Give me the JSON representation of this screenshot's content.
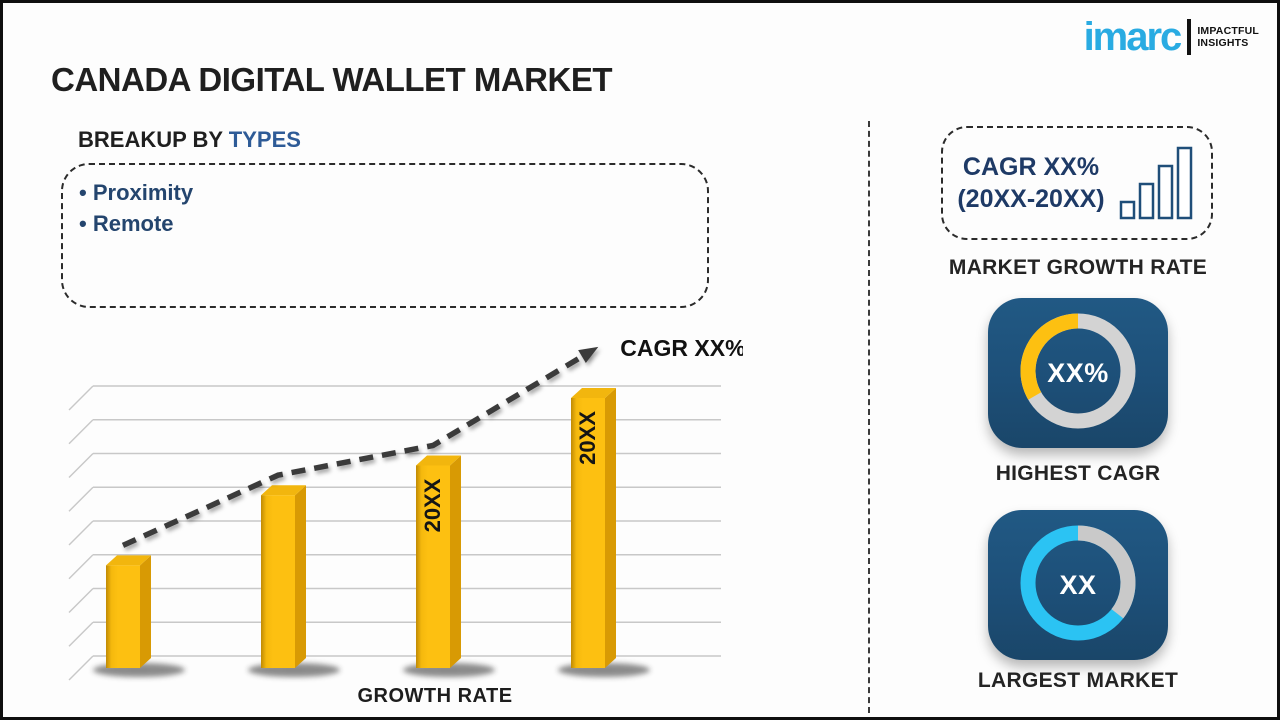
{
  "header": {
    "title": "CANADA DIGITAL WALLET MARKET",
    "logo": {
      "brand": "imarc",
      "tagline1": "IMPACTFUL",
      "tagline2": "INSIGHTS",
      "brand_color": "#29abe2"
    }
  },
  "breakup": {
    "heading_prefix": "BREAKUP BY ",
    "heading_highlight": "TYPES",
    "items": [
      "Proximity",
      "Remote"
    ]
  },
  "chart_data": {
    "type": "bar",
    "title": "",
    "xlabel": "GROWTH RATE",
    "categories": [
      "",
      "",
      "20XX",
      "20XX"
    ],
    "values_pct_of_max": [
      38,
      64,
      75,
      100
    ],
    "bar_labels": [
      "",
      "",
      "20XX",
      "20XX"
    ],
    "trend_line": {
      "label": "CAGR XX%",
      "style": "dashed-arrow-rising"
    },
    "bar_color": "#fdc011",
    "grid": true,
    "ylim": [
      0,
      100
    ],
    "legend": "none"
  },
  "right_panel": {
    "growth_box": {
      "line1": "CAGR XX%",
      "line2": "(20XX-20XX)"
    },
    "growth_caption": "MARKET GROWTH RATE",
    "tiles": [
      {
        "value": "XX%",
        "caption": "HIGHEST CAGR",
        "ring_base": "#d3d3d3",
        "ring_accent": "#fdc011",
        "accent_start_deg": 240,
        "accent_end_deg": 360
      },
      {
        "value": "XX",
        "caption": "LARGEST MARKET",
        "ring_base": "#2bc3f3",
        "ring_accent": "#c9c9c9",
        "accent_start_deg": 0,
        "accent_end_deg": 128
      }
    ]
  },
  "colors": {
    "title_text": "#1f1f1f",
    "heading_highlight": "#2e5b97",
    "list_text": "#24456e",
    "box_text": "#1e3a66",
    "tile_bg": "#1d4f78",
    "brand_cyan": "#29abe2",
    "bar_gold": "#fdc011",
    "trend_dark": "#3b3b3b",
    "ring_gray": "#d3d3d3",
    "ring_cyan": "#2bc3f3"
  }
}
